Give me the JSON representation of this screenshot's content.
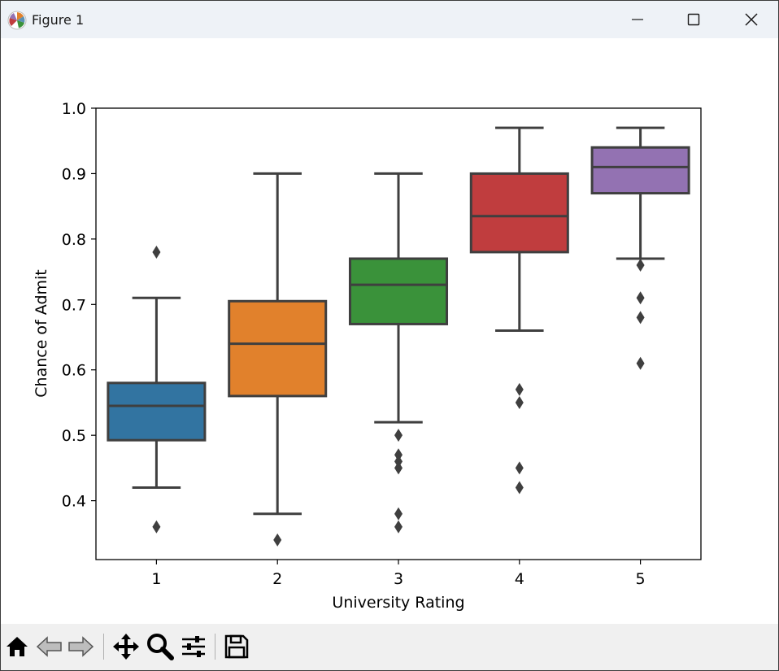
{
  "window": {
    "title": "Figure 1"
  },
  "toolbar": {
    "buttons": [
      {
        "name": "home-icon"
      },
      {
        "name": "back-icon"
      },
      {
        "name": "forward-icon"
      },
      {
        "name": "pan-icon"
      },
      {
        "name": "zoom-icon"
      },
      {
        "name": "configure-subplots-icon"
      },
      {
        "name": "save-icon"
      }
    ]
  },
  "colors": {
    "box_1": "#3274a1",
    "box_2": "#e1812c",
    "box_3": "#3a923a",
    "box_4": "#c03d3e",
    "box_5": "#9372b2",
    "line": "#3f3f3f"
  },
  "chart_data": {
    "type": "box",
    "xlabel": "University Rating",
    "ylabel": "Chance of Admit",
    "categories": [
      "1",
      "2",
      "3",
      "4",
      "5"
    ],
    "ylim": [
      0.31,
      1.0
    ],
    "yticks": [
      "0.4",
      "0.5",
      "0.6",
      "0.7",
      "0.8",
      "0.9",
      "1.0"
    ],
    "grid": false,
    "boxes": [
      {
        "category": "1",
        "whisker_low": 0.42,
        "q1": 0.4925,
        "median": 0.545,
        "q3": 0.58,
        "whisker_high": 0.71,
        "outliers": [
          0.78,
          0.36
        ]
      },
      {
        "category": "2",
        "whisker_low": 0.38,
        "q1": 0.56,
        "median": 0.64,
        "q3": 0.705,
        "whisker_high": 0.9,
        "outliers": [
          0.34
        ]
      },
      {
        "category": "3",
        "whisker_low": 0.52,
        "q1": 0.67,
        "median": 0.73,
        "q3": 0.77,
        "whisker_high": 0.9,
        "outliers": [
          0.5,
          0.47,
          0.46,
          0.45,
          0.38,
          0.36
        ]
      },
      {
        "category": "4",
        "whisker_low": 0.66,
        "q1": 0.78,
        "median": 0.835,
        "q3": 0.9,
        "whisker_high": 0.97,
        "outliers": [
          0.57,
          0.55,
          0.45,
          0.42
        ]
      },
      {
        "category": "5",
        "whisker_low": 0.77,
        "q1": 0.87,
        "median": 0.91,
        "q3": 0.94,
        "whisker_high": 0.97,
        "outliers": [
          0.76,
          0.71,
          0.68,
          0.61
        ]
      }
    ]
  }
}
